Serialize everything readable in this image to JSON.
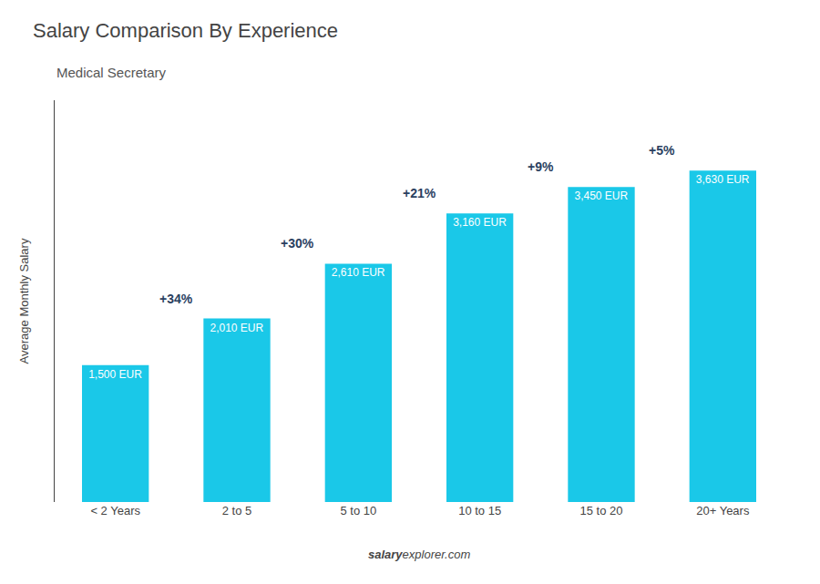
{
  "chart_data": {
    "type": "bar",
    "title": "Salary Comparison By Experience",
    "subtitle": "Medical Secretary",
    "ylabel": "Average Monthly Salary",
    "categories": [
      "< 2 Years",
      "2 to 5",
      "5 to 10",
      "10 to 15",
      "15 to 20",
      "20+ Years"
    ],
    "values": [
      1500,
      2010,
      2610,
      3160,
      3450,
      3630
    ],
    "value_labels": [
      "1,500 EUR",
      "2,010 EUR",
      "2,610 EUR",
      "3,160 EUR",
      "3,450 EUR",
      "3,630 EUR"
    ],
    "data_labels": true,
    "color": "#1ac8e8",
    "ylim": [
      0,
      4400
    ],
    "grid": false,
    "tick_labels": "x",
    "annotations": [
      "+34%",
      "+30%",
      "+21%",
      "+9%",
      "+5%"
    ],
    "footer": [
      "salary",
      "explorer",
      ".com"
    ]
  }
}
